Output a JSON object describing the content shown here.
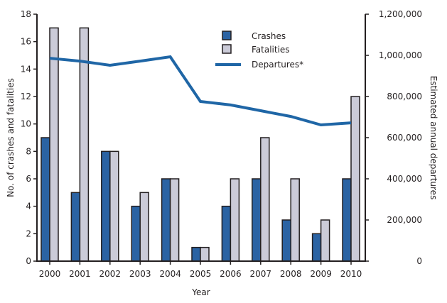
{
  "chart_data": {
    "type": "bar",
    "categories": [
      "2000",
      "2001",
      "2002",
      "2003",
      "2004",
      "2005",
      "2006",
      "2007",
      "2008",
      "2009",
      "2010"
    ],
    "series": [
      {
        "name": "Crashes",
        "type": "bar",
        "axis": "left",
        "color": "#2b63a3",
        "values": [
          9,
          5,
          8,
          4,
          6,
          1,
          4,
          6,
          3,
          2,
          6
        ]
      },
      {
        "name": "Fatalities",
        "type": "bar",
        "axis": "left",
        "color": "#cbcbd8",
        "values": [
          17,
          17,
          8,
          5,
          6,
          1,
          6,
          9,
          6,
          3,
          12
        ]
      },
      {
        "name": "Departures*",
        "type": "line",
        "axis": "right",
        "color": "#1f66a6",
        "values": [
          986000,
          972000,
          952000,
          972000,
          993000,
          776000,
          759000,
          731000,
          703000,
          662000,
          672000
        ]
      }
    ],
    "xlabel": "Year",
    "ylabel": "No. of crashes and fatalities",
    "ylabel_right": "Estimated annual departures",
    "ylim": [
      0,
      18
    ],
    "ylim_right": [
      0,
      1200000
    ],
    "yticks": [
      "0",
      "2",
      "4",
      "6",
      "8",
      "10",
      "12",
      "14",
      "16",
      "18"
    ],
    "yticks_right": [
      "0",
      "200,000",
      "400,000",
      "600,000",
      "800,000",
      "1,000,000",
      "1,200,000"
    ],
    "legend_position": "top-center",
    "grid": false
  }
}
